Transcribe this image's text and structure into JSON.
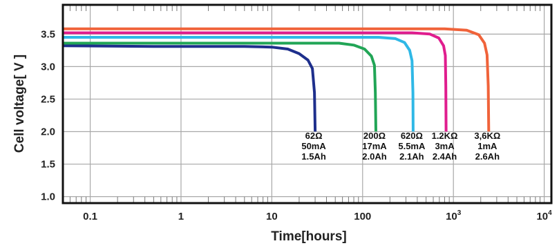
{
  "chart_data": {
    "type": "line",
    "title": "",
    "xlabel": "Time[hours]",
    "ylabel": "Cell voltage[ V ]",
    "x_scale": "log",
    "xlim": [
      0.05,
      12000
    ],
    "ylim": [
      0.9,
      3.95
    ],
    "grid": true,
    "legend": "none",
    "x_ticks": [
      {
        "value": 0.1,
        "label": "0.1"
      },
      {
        "value": 1,
        "label": "1"
      },
      {
        "value": 10,
        "label": "10"
      },
      {
        "value": 100,
        "label": "100"
      },
      {
        "value": 1000,
        "label": "10",
        "exp": "3"
      },
      {
        "value": 10000,
        "label": "10",
        "exp": "4"
      }
    ],
    "y_ticks": [
      {
        "value": 1.0,
        "label": "1.0"
      },
      {
        "value": 1.5,
        "label": "1.5"
      },
      {
        "value": 2.0,
        "label": "2.0"
      },
      {
        "value": 2.5,
        "label": "2.5"
      },
      {
        "value": 3.0,
        "label": "3.0"
      },
      {
        "value": 3.5,
        "label": "3.5"
      }
    ],
    "series": [
      {
        "color": "#1e2f8c",
        "labels": [
          "62Ω",
          "50mA",
          "1.5Ah"
        ],
        "label_x": 30,
        "points": [
          [
            0.05,
            3.32
          ],
          [
            0.5,
            3.31
          ],
          [
            5,
            3.31
          ],
          [
            10,
            3.3
          ],
          [
            15,
            3.27
          ],
          [
            20,
            3.2
          ],
          [
            25,
            3.1
          ],
          [
            28,
            2.97
          ],
          [
            29.5,
            2.6
          ],
          [
            30,
            2.0
          ]
        ]
      },
      {
        "color": "#21a556",
        "labels": [
          "200Ω",
          "17mA",
          "2.0Ah"
        ],
        "label_x": 140,
        "points": [
          [
            0.05,
            3.36
          ],
          [
            1,
            3.36
          ],
          [
            10,
            3.36
          ],
          [
            55,
            3.36
          ],
          [
            80,
            3.33
          ],
          [
            105,
            3.27
          ],
          [
            125,
            3.16
          ],
          [
            135,
            3.02
          ],
          [
            138,
            2.6
          ],
          [
            140,
            2.0
          ]
        ]
      },
      {
        "color": "#2fb8e6",
        "labels": [
          "620Ω",
          "5.5mA",
          "2.1Ah"
        ],
        "label_x": 360,
        "points": [
          [
            0.05,
            3.45
          ],
          [
            1,
            3.45
          ],
          [
            10,
            3.45
          ],
          [
            150,
            3.45
          ],
          [
            230,
            3.43
          ],
          [
            290,
            3.37
          ],
          [
            330,
            3.25
          ],
          [
            350,
            3.09
          ],
          [
            358,
            2.6
          ],
          [
            360,
            2.0
          ]
        ]
      },
      {
        "color": "#e01d8e",
        "labels": [
          "1.2KΩ",
          "3mA",
          "2.4Ah"
        ],
        "label_x": 830,
        "points": [
          [
            0.05,
            3.52
          ],
          [
            1,
            3.52
          ],
          [
            10,
            3.52
          ],
          [
            350,
            3.52
          ],
          [
            550,
            3.5
          ],
          [
            690,
            3.44
          ],
          [
            780,
            3.32
          ],
          [
            815,
            3.17
          ],
          [
            825,
            2.7
          ],
          [
            830,
            2.0
          ]
        ]
      },
      {
        "color": "#f0633a",
        "labels": [
          "3,6KΩ",
          "1mA",
          "2.6Ah"
        ],
        "label_x": 2450,
        "points": [
          [
            0.05,
            3.58
          ],
          [
            1,
            3.58
          ],
          [
            10,
            3.58
          ],
          [
            800,
            3.58
          ],
          [
            1400,
            3.56
          ],
          [
            1900,
            3.49
          ],
          [
            2200,
            3.36
          ],
          [
            2350,
            3.18
          ],
          [
            2420,
            2.7
          ],
          [
            2450,
            2.0
          ]
        ]
      }
    ]
  }
}
